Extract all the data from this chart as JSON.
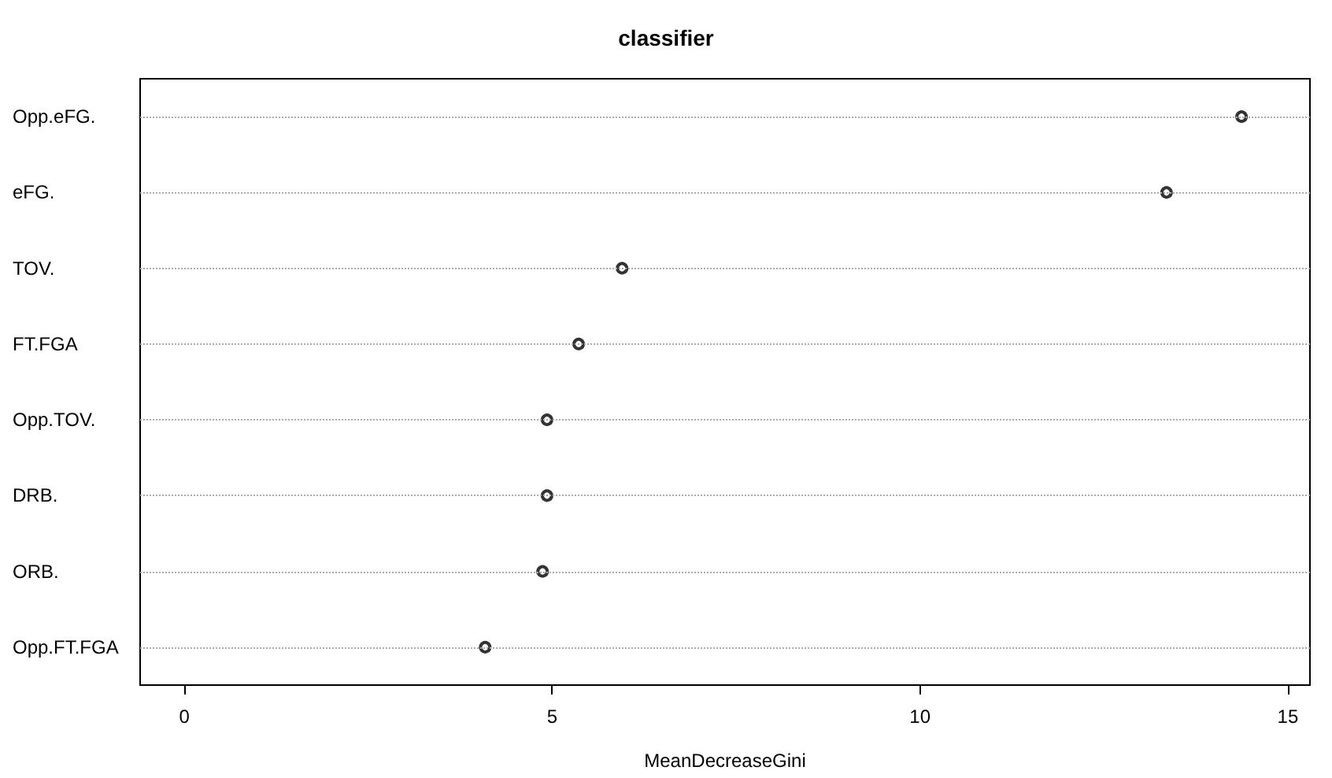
{
  "chart_data": {
    "type": "scatter",
    "title": "classifier",
    "xlabel": "MeanDecreaseGini",
    "categories": [
      "Opp.eFG.",
      "eFG.",
      "TOV.",
      "FT.FGA",
      "Opp.TOV.",
      "DRB.",
      "ORB.",
      "Opp.FT.FGA"
    ],
    "series": [
      {
        "color": "#000000",
        "values": [
          14.37,
          13.35,
          5.95,
          5.36,
          4.93,
          4.93,
          4.87,
          4.09
        ]
      }
    ],
    "orientation": "horizontal",
    "xlim": [
      -0.6,
      15.3
    ],
    "xticks": [
      0,
      5,
      10,
      15
    ],
    "grid": "y",
    "marker": "circle"
  }
}
